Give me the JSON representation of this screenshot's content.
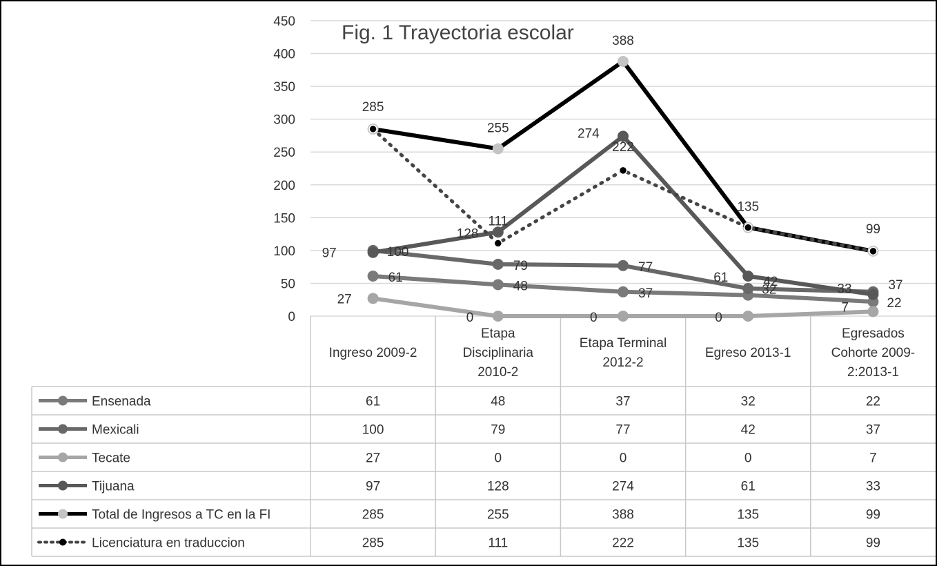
{
  "chart_data": {
    "type": "line",
    "title": "Fig. 1 Trayectoria escolar",
    "xlabel": "",
    "ylabel": "",
    "ylim": [
      0,
      450
    ],
    "yticks": [
      0,
      50,
      100,
      150,
      200,
      250,
      300,
      350,
      400,
      450
    ],
    "categories": [
      [
        "Ingreso 2009-2"
      ],
      [
        "Etapa",
        "Disciplinaria",
        "2010-2"
      ],
      [
        "Etapa Terminal",
        "2012-2"
      ],
      [
        "Egreso 2013-1"
      ],
      [
        "Egresados",
        "Cohorte 2009-",
        "2:2013-1"
      ]
    ],
    "grid": true,
    "legend": "data-table",
    "series": [
      {
        "name": "Ensenada",
        "values": [
          61,
          48,
          37,
          32,
          22
        ],
        "color": "#7a7a7a",
        "marker_color": "#7a7a7a",
        "dotted": false
      },
      {
        "name": "Mexicali",
        "values": [
          100,
          79,
          77,
          42,
          37
        ],
        "color": "#686868",
        "marker_color": "#686868",
        "dotted": false
      },
      {
        "name": "Tecate",
        "values": [
          27,
          0,
          0,
          0,
          7
        ],
        "color": "#a6a6a6",
        "marker_color": "#a6a6a6",
        "dotted": false
      },
      {
        "name": "Tijuana",
        "values": [
          97,
          128,
          274,
          61,
          33
        ],
        "color": "#585858",
        "marker_color": "#585858",
        "dotted": false
      },
      {
        "name": "Total de Ingresos a TC en la FI",
        "values": [
          285,
          255,
          388,
          135,
          99
        ],
        "color": "#000000",
        "marker_color": "#c4c4c4",
        "dotted": false
      },
      {
        "name": "Licenciatura en traduccion",
        "values": [
          285,
          111,
          222,
          135,
          99
        ],
        "color": "#444444",
        "marker_color": "#000000",
        "dotted": true
      }
    ]
  }
}
